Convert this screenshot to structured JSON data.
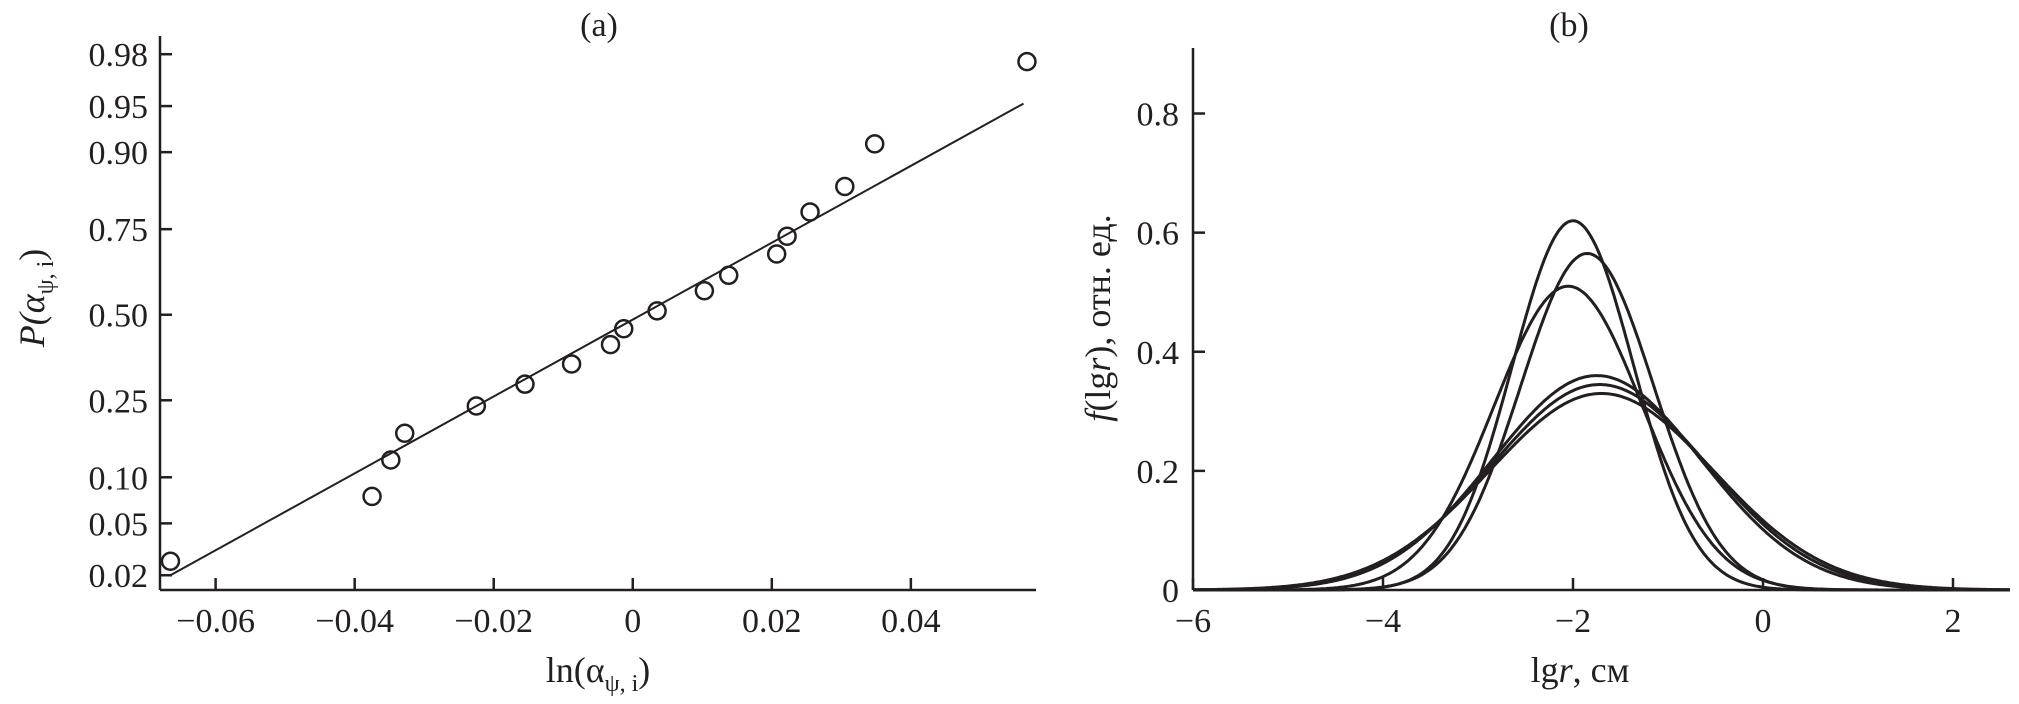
{
  "chart_data": [
    {
      "type": "scatter",
      "title": "(a)",
      "xlabel": "ln(α",
      "xlabel_sub": "ψ, i",
      "xlabel_end": ")",
      "ylabel": "P(α",
      "ylabel_sub": "ψ, i",
      "ylabel_end": ")",
      "xlim": [
        -0.068,
        0.058
      ],
      "ylim": [
        0.015,
        0.986
      ],
      "yscale": "normal-probability",
      "x_ticks": [
        -0.06,
        -0.04,
        -0.02,
        0,
        0.02,
        0.04
      ],
      "x_tick_labels": [
        "−0.06",
        "−0.04",
        "−0.02",
        "0",
        "0.02",
        "0.04"
      ],
      "y_ticks": [
        0.02,
        0.05,
        0.1,
        0.25,
        0.5,
        0.75,
        0.9,
        0.95,
        0.98
      ],
      "y_tick_labels": [
        "0.02",
        "0.05",
        "0.10",
        "0.25",
        "0.50",
        "0.75",
        "0.90",
        "0.95",
        "0.98"
      ],
      "grid": false,
      "series": [
        {
          "kind": "points",
          "marker": "open-circle",
          "points": [
            [
              -0.0665,
              0.026
            ],
            [
              -0.0375,
              0.076
            ],
            [
              -0.0348,
              0.126
            ],
            [
              -0.0328,
              0.175
            ],
            [
              -0.0225,
              0.236
            ],
            [
              -0.0155,
              0.292
            ],
            [
              -0.0088,
              0.349
            ],
            [
              -0.0032,
              0.407
            ],
            [
              -0.0013,
              0.456
            ],
            [
              0.0035,
              0.512
            ],
            [
              0.0103,
              0.575
            ],
            [
              0.0138,
              0.622
            ],
            [
              0.0207,
              0.684
            ],
            [
              0.0222,
              0.732
            ],
            [
              0.0255,
              0.791
            ],
            [
              0.0305,
              0.844
            ],
            [
              0.0348,
              0.911
            ],
            [
              0.0567,
              0.977
            ]
          ]
        },
        {
          "kind": "fit-line",
          "points": [
            [
              -0.0665,
              0.02
            ],
            [
              0.0562,
              0.952
            ]
          ]
        }
      ]
    },
    {
      "type": "line",
      "title": "(b)",
      "xlabel": "lg",
      "xlabel_var": "r",
      "xlabel_end": ", см",
      "ylabel": "f",
      "ylabel_mid": "(lg",
      "ylabel_var": "r",
      "ylabel_end": "), отн. ед.",
      "xlim": [
        -6,
        2.6
      ],
      "ylim": [
        0,
        0.91
      ],
      "x_ticks": [
        -6,
        -4,
        -2,
        0,
        2
      ],
      "x_tick_labels": [
        "−6",
        "−4",
        "−2",
        "0",
        "2"
      ],
      "y_ticks": [
        0,
        0.2,
        0.4,
        0.6,
        0.8
      ],
      "y_tick_labels": [
        "0",
        "0.2",
        "0.4",
        "0.6",
        "0.8"
      ],
      "grid": false,
      "series": [
        {
          "peak": 0.62,
          "mean": -2.0,
          "sd": 0.64
        },
        {
          "peak": 0.565,
          "mean": -1.85,
          "sd": 0.7
        },
        {
          "peak": 0.51,
          "mean": -2.05,
          "sd": 0.78
        },
        {
          "peak": 0.36,
          "mean": -1.75,
          "sd": 1.1
        },
        {
          "peak": 0.345,
          "mean": -1.72,
          "sd": 1.14
        },
        {
          "peak": 0.33,
          "mean": -1.7,
          "sd": 1.18
        }
      ]
    }
  ]
}
